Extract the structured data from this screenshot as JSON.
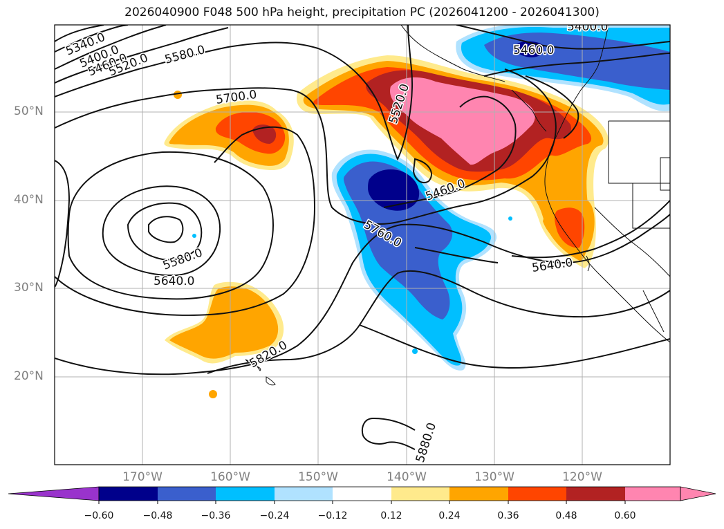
{
  "title": "2026040900 F048 500 hPa height, precipitation PC (2026041200 - 2026041300)",
  "latitude_labels": [
    "50°N",
    "40°N",
    "30°N",
    "20°N"
  ],
  "longitude_labels": [
    "170°W",
    "160°W",
    "150°W",
    "140°W",
    "130°W",
    "120°W"
  ],
  "contour_labels": [
    "5340.0",
    "5400.0",
    "5460.0",
    "5520.0",
    "5580.0",
    "5700.0",
    "5520.0",
    "5460.0",
    "5460.0",
    "5400.0",
    "5580.0",
    "5640.0",
    "5760.0",
    "5640.0",
    "5820.0",
    "5880.0"
  ],
  "colorbar": {
    "ticks": [
      "−0.60",
      "−0.48",
      "−0.36",
      "−0.24",
      "−0.12",
      "0.12",
      "0.24",
      "0.36",
      "0.48",
      "0.60"
    ],
    "colors": [
      "#9933cc",
      "#00008b",
      "#3a5fcd",
      "#00bfff",
      "#b0e2ff",
      "#ffffff",
      "#ffea8c",
      "#ffa500",
      "#ff4500",
      "#b22222",
      "#ff85b0"
    ]
  }
}
